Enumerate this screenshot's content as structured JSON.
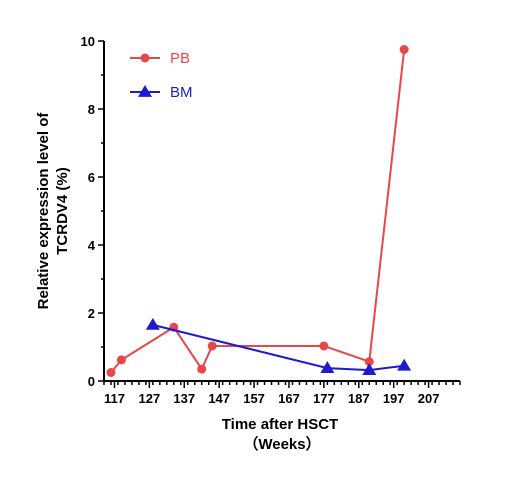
{
  "chart_data": {
    "type": "line",
    "xlabel": "Time after HSCT",
    "xlabel_unit": "（Weeks）",
    "ylabel_line1": "Relative expression level of",
    "ylabel_line2": "TCRDV4 (%)",
    "xlim": [
      114,
      216
    ],
    "ylim": [
      0,
      10
    ],
    "xticks": [
      117,
      127,
      137,
      147,
      157,
      167,
      177,
      187,
      197,
      207
    ],
    "yticks": [
      0,
      2,
      4,
      6,
      8,
      10
    ],
    "legend_position": "top-left",
    "series": [
      {
        "name": "PB",
        "color": "#e8474a",
        "marker": "circle",
        "x": [
          116,
          119,
          134,
          142,
          145,
          177,
          190,
          200
        ],
        "y": [
          0.25,
          0.62,
          1.58,
          0.35,
          1.03,
          1.03,
          0.57,
          9.75
        ]
      },
      {
        "name": "BM",
        "color": "#1d1bcc",
        "marker": "triangle",
        "x": [
          128,
          178,
          190,
          200
        ],
        "y": [
          1.65,
          0.38,
          0.32,
          0.45
        ]
      }
    ]
  }
}
